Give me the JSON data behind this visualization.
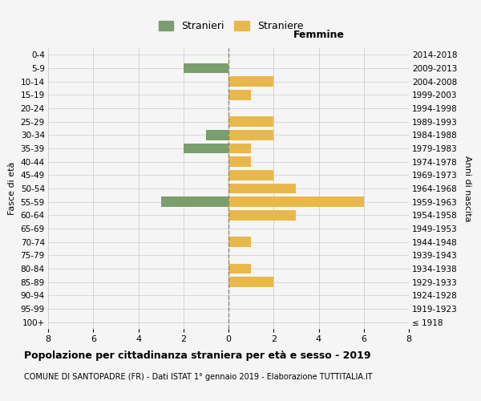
{
  "age_groups": [
    "100+",
    "95-99",
    "90-94",
    "85-89",
    "80-84",
    "75-79",
    "70-74",
    "65-69",
    "60-64",
    "55-59",
    "50-54",
    "45-49",
    "40-44",
    "35-39",
    "30-34",
    "25-29",
    "20-24",
    "15-19",
    "10-14",
    "5-9",
    "0-4"
  ],
  "birth_years": [
    "≤ 1918",
    "1919-1923",
    "1924-1928",
    "1929-1933",
    "1934-1938",
    "1939-1943",
    "1944-1948",
    "1949-1953",
    "1954-1958",
    "1959-1963",
    "1964-1968",
    "1969-1973",
    "1974-1978",
    "1979-1983",
    "1984-1988",
    "1989-1993",
    "1994-1998",
    "1999-2003",
    "2004-2008",
    "2009-2013",
    "2014-2018"
  ],
  "stranieri": [
    0,
    0,
    0,
    0,
    0,
    0,
    0,
    0,
    0,
    3,
    0,
    0,
    0,
    2,
    1,
    0,
    0,
    0,
    0,
    2,
    0
  ],
  "straniere": [
    0,
    0,
    0,
    2,
    1,
    0,
    1,
    0,
    3,
    6,
    3,
    2,
    1,
    1,
    2,
    2,
    0,
    1,
    2,
    0,
    0
  ],
  "color_stranieri": "#7a9e6e",
  "color_straniere": "#e8b84b",
  "xlim": 8,
  "title": "Popolazione per cittadinanza straniera per età e sesso - 2019",
  "subtitle": "COMUNE DI SANTOPADRE (FR) - Dati ISTAT 1° gennaio 2019 - Elaborazione TUTTITALIA.IT",
  "xlabel_right": "Femmine",
  "ylabel_left": "Fasce di età",
  "ylabel_right": "Anni di nascita",
  "legend_stranieri": "Stranieri",
  "legend_straniere": "Straniere",
  "bg_color": "#f5f5f5",
  "grid_color": "#cccccc",
  "zero_line_color": "#888877",
  "title_fontsize": 9,
  "subtitle_fontsize": 7
}
